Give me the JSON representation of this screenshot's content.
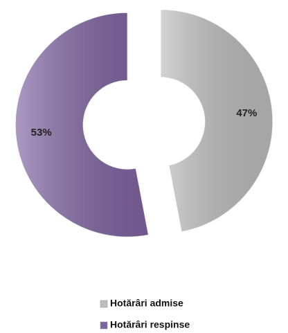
{
  "chart_data": {
    "type": "donut",
    "categories": [
      "Hotărâri admise",
      "Hotărâri respinse"
    ],
    "values": [
      47,
      53
    ],
    "value_labels": [
      "47%",
      "53%"
    ],
    "colors": [
      "#bdbdbd",
      "#8064a2"
    ],
    "legend": "bottom"
  }
}
